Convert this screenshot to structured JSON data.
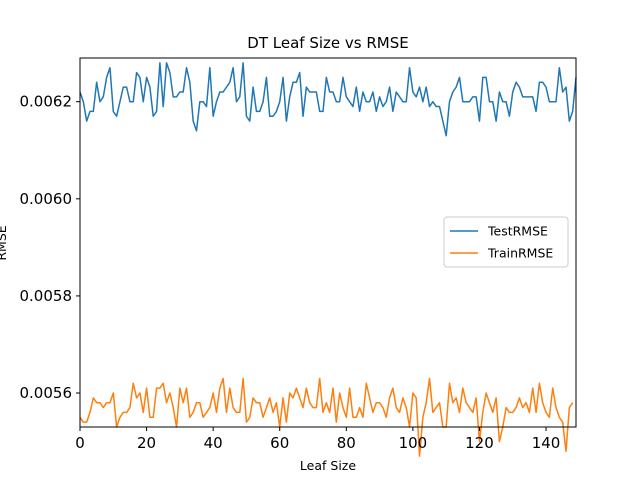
{
  "chart_data": {
    "type": "line",
    "title": "DT Leaf Size vs RMSE",
    "xlabel": "Leaf Size",
    "ylabel": "RMSE",
    "xlim": [
      0,
      149
    ],
    "ylim": [
      0.00553,
      0.00629
    ],
    "xticks": [
      "0",
      "20",
      "40",
      "60",
      "80",
      "100",
      "120",
      "140"
    ],
    "yticks": [
      "0.0056",
      "0.0058",
      "0.0060",
      "0.0062"
    ],
    "legend_position": "center-right",
    "grid": false,
    "series": [
      {
        "name": "TestRMSE",
        "color": "#1f77b4",
        "x_start": 0,
        "x_step": 1,
        "values": [
          0.00622,
          0.0062,
          0.00616,
          0.00618,
          0.00618,
          0.00624,
          0.0062,
          0.00621,
          0.00625,
          0.00627,
          0.00618,
          0.00617,
          0.0062,
          0.00623,
          0.00623,
          0.0062,
          0.0062,
          0.00626,
          0.00625,
          0.0062,
          0.00625,
          0.00623,
          0.00617,
          0.00618,
          0.00628,
          0.00619,
          0.00628,
          0.00626,
          0.00621,
          0.00621,
          0.00622,
          0.00622,
          0.00627,
          0.00624,
          0.00616,
          0.00614,
          0.0062,
          0.0062,
          0.00619,
          0.00627,
          0.00617,
          0.0062,
          0.00622,
          0.00622,
          0.00623,
          0.00624,
          0.00627,
          0.0062,
          0.00621,
          0.00628,
          0.00617,
          0.00616,
          0.00623,
          0.00618,
          0.00618,
          0.0062,
          0.00625,
          0.00617,
          0.00617,
          0.00618,
          0.0062,
          0.00625,
          0.00616,
          0.00621,
          0.00624,
          0.00624,
          0.00626,
          0.00617,
          0.00623,
          0.00622,
          0.00622,
          0.00622,
          0.00618,
          0.00618,
          0.00625,
          0.00622,
          0.00622,
          0.0062,
          0.0062,
          0.00625,
          0.00621,
          0.0062,
          0.00619,
          0.00623,
          0.00618,
          0.00622,
          0.0062,
          0.0062,
          0.00622,
          0.00618,
          0.00621,
          0.00619,
          0.0062,
          0.00623,
          0.00618,
          0.00622,
          0.00621,
          0.0062,
          0.0062,
          0.00627,
          0.00622,
          0.00621,
          0.00623,
          0.0062,
          0.00623,
          0.00619,
          0.0062,
          0.00619,
          0.00619,
          0.00616,
          0.00613,
          0.0062,
          0.00622,
          0.00623,
          0.00625,
          0.0062,
          0.0062,
          0.0062,
          0.00621,
          0.00621,
          0.00616,
          0.00625,
          0.00625,
          0.0062,
          0.0062,
          0.00616,
          0.00622,
          0.0062,
          0.0062,
          0.00617,
          0.00622,
          0.00624,
          0.00623,
          0.00621,
          0.00621,
          0.00621,
          0.00621,
          0.00618,
          0.00624,
          0.00624,
          0.00623,
          0.0062,
          0.0062,
          0.0062,
          0.00627,
          0.00622,
          0.00623,
          0.00616,
          0.00618,
          0.00625
        ]
      },
      {
        "name": "TrainRMSE",
        "color": "#ff7f0e",
        "x_start": 0,
        "x_step": 1,
        "values": [
          0.00555,
          0.00554,
          0.00554,
          0.00556,
          0.00559,
          0.00558,
          0.00558,
          0.00557,
          0.00558,
          0.00558,
          0.0056,
          0.00553,
          0.00555,
          0.00556,
          0.00556,
          0.00557,
          0.00562,
          0.00559,
          0.0056,
          0.00556,
          0.00561,
          0.00555,
          0.00555,
          0.00561,
          0.00561,
          0.00562,
          0.00558,
          0.0056,
          0.00557,
          0.00553,
          0.00561,
          0.00558,
          0.00561,
          0.00555,
          0.00556,
          0.00558,
          0.00558,
          0.00555,
          0.00556,
          0.00557,
          0.0056,
          0.00556,
          0.00561,
          0.00563,
          0.00556,
          0.00561,
          0.00557,
          0.00556,
          0.00556,
          0.00563,
          0.00554,
          0.00555,
          0.00559,
          0.00558,
          0.00558,
          0.00555,
          0.00557,
          0.00559,
          0.00556,
          0.00558,
          0.00553,
          0.00559,
          0.00554,
          0.0056,
          0.00559,
          0.00561,
          0.00559,
          0.00557,
          0.00561,
          0.00558,
          0.00557,
          0.00557,
          0.00563,
          0.00556,
          0.00558,
          0.00556,
          0.00561,
          0.00554,
          0.0056,
          0.00557,
          0.00555,
          0.00561,
          0.00555,
          0.00555,
          0.00557,
          0.00555,
          0.00562,
          0.00559,
          0.00556,
          0.00558,
          0.00558,
          0.00557,
          0.00555,
          0.00559,
          0.00561,
          0.00557,
          0.00556,
          0.00559,
          0.00557,
          0.00553,
          0.0056,
          0.00559,
          0.00547,
          0.00555,
          0.00558,
          0.00563,
          0.00556,
          0.00557,
          0.00558,
          0.00553,
          0.00553,
          0.00562,
          0.00558,
          0.00559,
          0.00556,
          0.00561,
          0.00558,
          0.00557,
          0.00556,
          0.00559,
          0.0055,
          0.00556,
          0.0056,
          0.00558,
          0.00556,
          0.00559,
          0.0055,
          0.00553,
          0.00557,
          0.00556,
          0.00556,
          0.00557,
          0.00559,
          0.00557,
          0.00558,
          0.00556,
          0.00561,
          0.00556,
          0.00562,
          0.00558,
          0.00556,
          0.00555,
          0.00561,
          0.00557,
          0.00555,
          0.00554,
          0.00548,
          0.00557,
          0.00558
        ]
      }
    ]
  }
}
